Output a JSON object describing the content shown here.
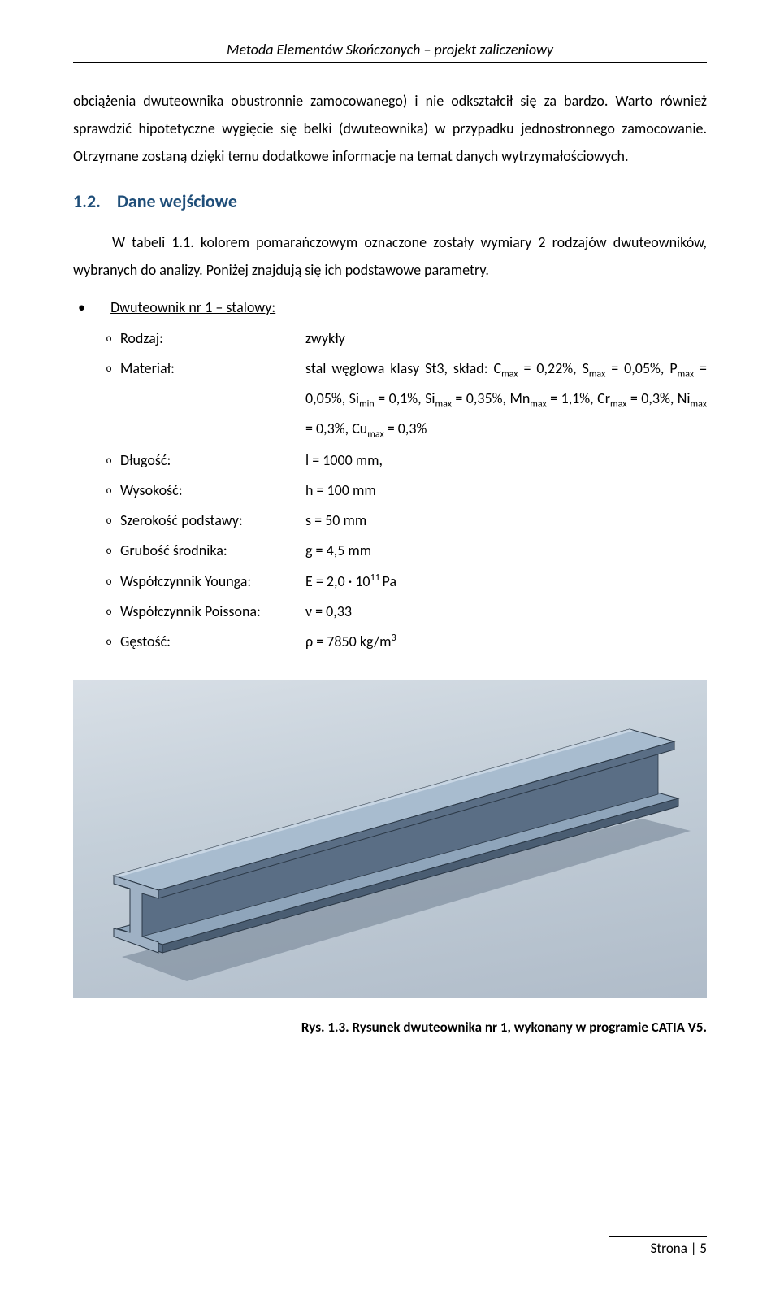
{
  "header": "Metoda Elementów Skończonych – projekt zaliczeniowy",
  "para1": "obciążenia dwuteownika obustronnie zamocowanego) i nie odkształcił się za bardzo. Warto również sprawdzić hipotetyczne wygięcie się belki (dwuteownika) w przypadku jednostronnego zamocowanie. Otrzymane zostaną dzięki temu dodatkowe informacje na temat danych wytrzymałościowych.",
  "section_number": "1.2.",
  "section_title": "Dane wejściowe",
  "para2": "W tabeli 1.1. kolorem pomarańczowym oznaczone zostały wymiary 2 rodzajów dwuteowników, wybranych do analizy. Poniżej znajdują się ich podstawowe parametry.",
  "item_title": "Dwuteownik nr 1 – stalowy:",
  "specs": [
    {
      "label": "Rodzaj:",
      "value": "zwykły"
    },
    {
      "label": "Materiał:",
      "value_html": "stal węglowa klasy St3, skład: C<sub>max</sub> = 0,22%, S<sub>max</sub> = 0,05%, P<sub>max</sub> = 0,05%, Si<sub>min</sub> = 0,1%, Si<sub>max</sub> = 0,35%, Mn<sub>max</sub> = 1,1%, Cr<sub>max</sub> = 0,3%, Ni<sub>max</sub> = 0,3%, Cu<sub>max</sub> = 0,3%"
    },
    {
      "label": "Długość:",
      "value": "l = 1000 mm,"
    },
    {
      "label": "Wysokość:",
      "value": "h = 100 mm"
    },
    {
      "label": "Szerokość podstawy:",
      "value": "s = 50 mm"
    },
    {
      "label": "Grubość środnika:",
      "value": "g = 4,5 mm"
    },
    {
      "label": "Współczynnik Younga:",
      "value_html": "E = 2,0 · 10<sup>11 </sup>Pa"
    },
    {
      "label": "Współczynnik Poissona:",
      "value": "ν = 0,33"
    },
    {
      "label": "Gęstość:",
      "value_html": "ρ = 7850 kg/m<sup>3</sup>"
    }
  ],
  "caption": "Rys. 1.3. Rysunek dwuteownika nr 1, wykonany w programie CATIA V5.",
  "footer": "Strona | 5",
  "figure": {
    "background_gradient": [
      "#d8dfe6",
      "#c4cfd9",
      "#b0bcc9"
    ],
    "beam_top_fill": "#8fa5bb",
    "beam_side_fill": "#5a6e85",
    "beam_front_fill": "#9fb1c4",
    "beam_edge": "#2b3846",
    "shadow": "#6a7a8c"
  }
}
